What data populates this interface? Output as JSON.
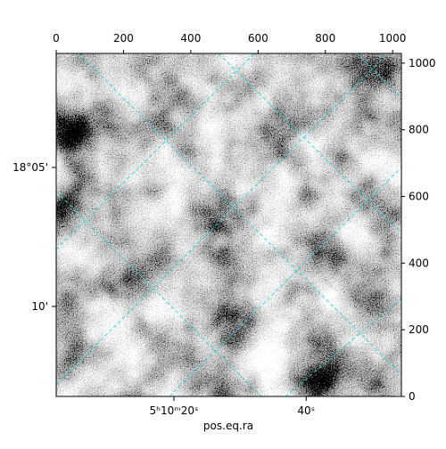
{
  "chart_data": {
    "type": "image",
    "xlabel": "pos.eq.ra",
    "xlim": [
      0,
      1026
    ],
    "ylim": [
      0,
      1029
    ],
    "xticks": [
      0,
      200,
      400,
      600,
      800,
      1000
    ],
    "yticks": [
      0,
      200,
      400,
      600,
      800,
      1000
    ],
    "ra_ticks": [
      {
        "value": 350,
        "label": "5ʰ10ᵐ20ˢ"
      },
      {
        "value": 743,
        "label": "40ˢ"
      }
    ],
    "dec_ticks": [
      {
        "value": 687,
        "label": "18°05'"
      },
      {
        "value": 270,
        "label": "10'"
      }
    ],
    "grid": true,
    "grid_color": "#2ad4d4"
  }
}
